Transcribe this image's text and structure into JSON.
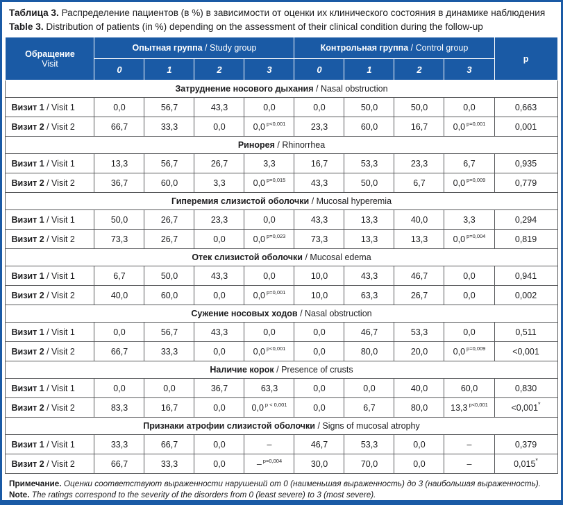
{
  "colors": {
    "header_blue": "#1a5aa5",
    "grid_gray": "#57585a",
    "text": "#1c1c1e"
  },
  "page": {
    "title": {
      "ru_label": "Таблица 3.",
      "ru_text": "Распределение пациентов (в %) в зависимости от оценки их клинического состояния в динамике наблюдения",
      "en_label": "Table 3.",
      "en_text": "Distribution of patients (in %) depending on the assessment of their clinical condition during the follow-up"
    }
  },
  "table": {
    "header": {
      "visit_ru": "Обращение",
      "visit_en": "Visit",
      "study_ru": "Опытная группа",
      "study_en": "Study group",
      "control_ru": "Контрольная группа",
      "control_en": "Control group",
      "score_labels": [
        "0",
        "1",
        "2",
        "3"
      ],
      "p_label": "p",
      "separator": " / "
    },
    "sections": [
      {
        "title_ru": "Затруднение носового дыхания",
        "title_en": "Nasal obstruction",
        "rows": [
          {
            "label_ru": "Визит 1",
            "label_en": "Visit 1",
            "values": [
              "0,0",
              "56,7",
              "43,3",
              "0,0",
              "0,0",
              "50,0",
              "50,0",
              "0,0"
            ],
            "sups": {},
            "p": "0,663",
            "p_sup": ""
          },
          {
            "label_ru": "Визит 2",
            "label_en": "Visit 2",
            "values": [
              "66,7",
              "33,3",
              "0,0",
              "0,0",
              "23,3",
              "60,0",
              "16,7",
              "0,0"
            ],
            "sups": {
              "3": "p<0,001",
              "7": "p=0,001"
            },
            "p": "0,001",
            "p_sup": ""
          }
        ]
      },
      {
        "title_ru": "Ринорея",
        "title_en": "Rhinorrhea",
        "rows": [
          {
            "label_ru": "Визит 1",
            "label_en": "Visit 1",
            "values": [
              "13,3",
              "56,7",
              "26,7",
              "3,3",
              "16,7",
              "53,3",
              "23,3",
              "6,7"
            ],
            "sups": {},
            "p": "0,935",
            "p_sup": ""
          },
          {
            "label_ru": "Визит 2",
            "label_en": "Visit 2",
            "values": [
              "36,7",
              "60,0",
              "3,3",
              "0,0",
              "43,3",
              "50,0",
              "6,7",
              "0,0"
            ],
            "sups": {
              "3": "p=0,015",
              "7": "p=0,009"
            },
            "p": "0,779",
            "p_sup": ""
          }
        ]
      },
      {
        "title_ru": "Гиперемия слизистой оболочки",
        "title_en": "Mucosal hyperemia",
        "rows": [
          {
            "label_ru": "Визит 1",
            "label_en": "Visit 1",
            "values": [
              "50,0",
              "26,7",
              "23,3",
              "0,0",
              "43,3",
              "13,3",
              "40,0",
              "3,3"
            ],
            "sups": {},
            "p": "0,294",
            "p_sup": ""
          },
          {
            "label_ru": "Визит 2",
            "label_en": "Visit 2",
            "values": [
              "73,3",
              "26,7",
              "0,0",
              "0,0",
              "73,3",
              "13,3",
              "13,3",
              "0,0"
            ],
            "sups": {
              "3": "p=0,023",
              "7": "p=0,004"
            },
            "p": "0,819",
            "p_sup": ""
          }
        ]
      },
      {
        "title_ru": "Отек слизистой оболочки",
        "title_en": "Mucosal edema",
        "rows": [
          {
            "label_ru": "Визит 1",
            "label_en": "Visit 1",
            "values": [
              "6,7",
              "50,0",
              "43,3",
              "0,0",
              "10,0",
              "43,3",
              "46,7",
              "0,0"
            ],
            "sups": {},
            "p": "0,941",
            "p_sup": ""
          },
          {
            "label_ru": "Визит 2",
            "label_en": "Visit 2",
            "values": [
              "40,0",
              "60,0",
              "0,0",
              "0,0",
              "10,0",
              "63,3",
              "26,7",
              "0,0"
            ],
            "sups": {
              "3": "p=0,001"
            },
            "p": "0,002",
            "p_sup": ""
          }
        ]
      },
      {
        "title_ru": "Сужение носовых ходов",
        "title_en": "Nasal obstruction",
        "rows": [
          {
            "label_ru": "Визит 1",
            "label_en": "Visit 1",
            "values": [
              "0,0",
              "56,7",
              "43,3",
              "0,0",
              "0,0",
              "46,7",
              "53,3",
              "0,0"
            ],
            "sups": {},
            "p": "0,511",
            "p_sup": ""
          },
          {
            "label_ru": "Визит 2",
            "label_en": "Visit 2",
            "values": [
              "66,7",
              "33,3",
              "0,0",
              "0,0",
              "0,0",
              "80,0",
              "20,0",
              "0,0"
            ],
            "sups": {
              "3": "p<0,001",
              "7": "p=0,009"
            },
            "p": "<0,001",
            "p_sup": ""
          }
        ]
      },
      {
        "title_ru": "Наличие корок",
        "title_en": "Presence of crusts",
        "rows": [
          {
            "label_ru": "Визит 1",
            "label_en": "Visit 1",
            "values": [
              "0,0",
              "0,0",
              "36,7",
              "63,3",
              "0,0",
              "0,0",
              "40,0",
              "60,0"
            ],
            "sups": {},
            "p": "0,830",
            "p_sup": ""
          },
          {
            "label_ru": "Визит 2",
            "label_en": "Visit 2",
            "values": [
              "83,3",
              "16,7",
              "0,0",
              "0,0",
              "0,0",
              "6,7",
              "80,0",
              "13,3"
            ],
            "sups": {
              "3": "p < 0,001",
              "7": "p<0,001"
            },
            "p": "<0,001",
            "p_sup": "*"
          }
        ]
      },
      {
        "title_ru": "Признаки атрофии слизистой оболочки",
        "title_en": "Signs of mucosal atrophy",
        "rows": [
          {
            "label_ru": "Визит 1",
            "label_en": "Visit 1",
            "values": [
              "33,3",
              "66,7",
              "0,0",
              "–",
              "46,7",
              "53,3",
              "0,0",
              "–"
            ],
            "sups": {},
            "p": "0,379",
            "p_sup": ""
          },
          {
            "label_ru": "Визит 2",
            "label_en": "Visit 2",
            "values": [
              "66,7",
              "33,3",
              "0,0",
              "–",
              "30,0",
              "70,0",
              "0,0",
              "–"
            ],
            "sups": {
              "3": "p=0,004"
            },
            "p": "0,015",
            "p_sup": "*"
          }
        ]
      }
    ]
  },
  "notes": {
    "ru_label": "Примечание.",
    "ru_text": "Оценки соответствуют выраженности нарушений от 0 (наименьшая выраженность) до 3 (наибольшая выраженность).",
    "en_label": "Note.",
    "en_text": "The ratings correspond to the severity of the disorders from 0 (least severe) to 3 (most severe)."
  }
}
